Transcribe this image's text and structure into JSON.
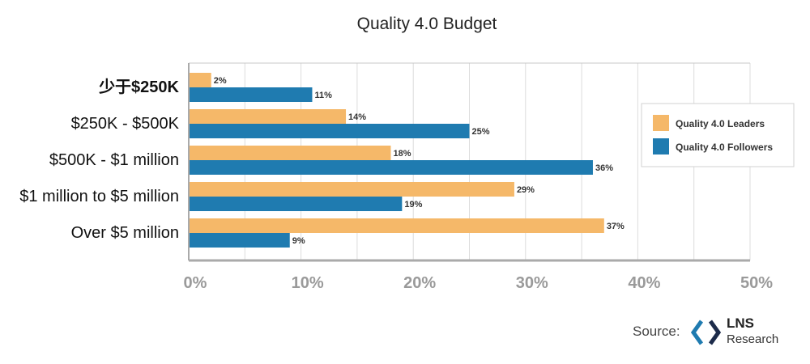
{
  "chart_data": {
    "type": "bar",
    "orientation": "horizontal",
    "title": "Quality 4.0 Budget",
    "categories": [
      "少于$250K",
      "$250K - $500K",
      "$500K - $1 million",
      "$1 million to $5 million",
      "Over $5 million"
    ],
    "series": [
      {
        "name": "Quality 4.0 Leaders",
        "values": [
          2,
          14,
          18,
          29,
          37
        ],
        "labels": [
          "2%",
          "14%",
          "18%",
          "29%",
          "37%"
        ],
        "color": "#f5b869"
      },
      {
        "name": "Quality 4.0 Followers",
        "values": [
          11,
          25,
          36,
          19,
          9
        ],
        "labels": [
          "11%",
          "25%",
          "36%",
          "19%",
          "9%"
        ],
        "color": "#1f7bb0"
      }
    ],
    "xlim": [
      0,
      50
    ],
    "xticks": [
      0,
      10,
      20,
      30,
      40,
      50
    ],
    "xtick_labels": [
      "0%",
      "10%",
      "20%",
      "30%",
      "40%",
      "50%"
    ],
    "grid": true,
    "legend_position": "right"
  },
  "source": {
    "label": "Source:",
    "brand_name": "LNS",
    "brand_sub": "Research"
  }
}
